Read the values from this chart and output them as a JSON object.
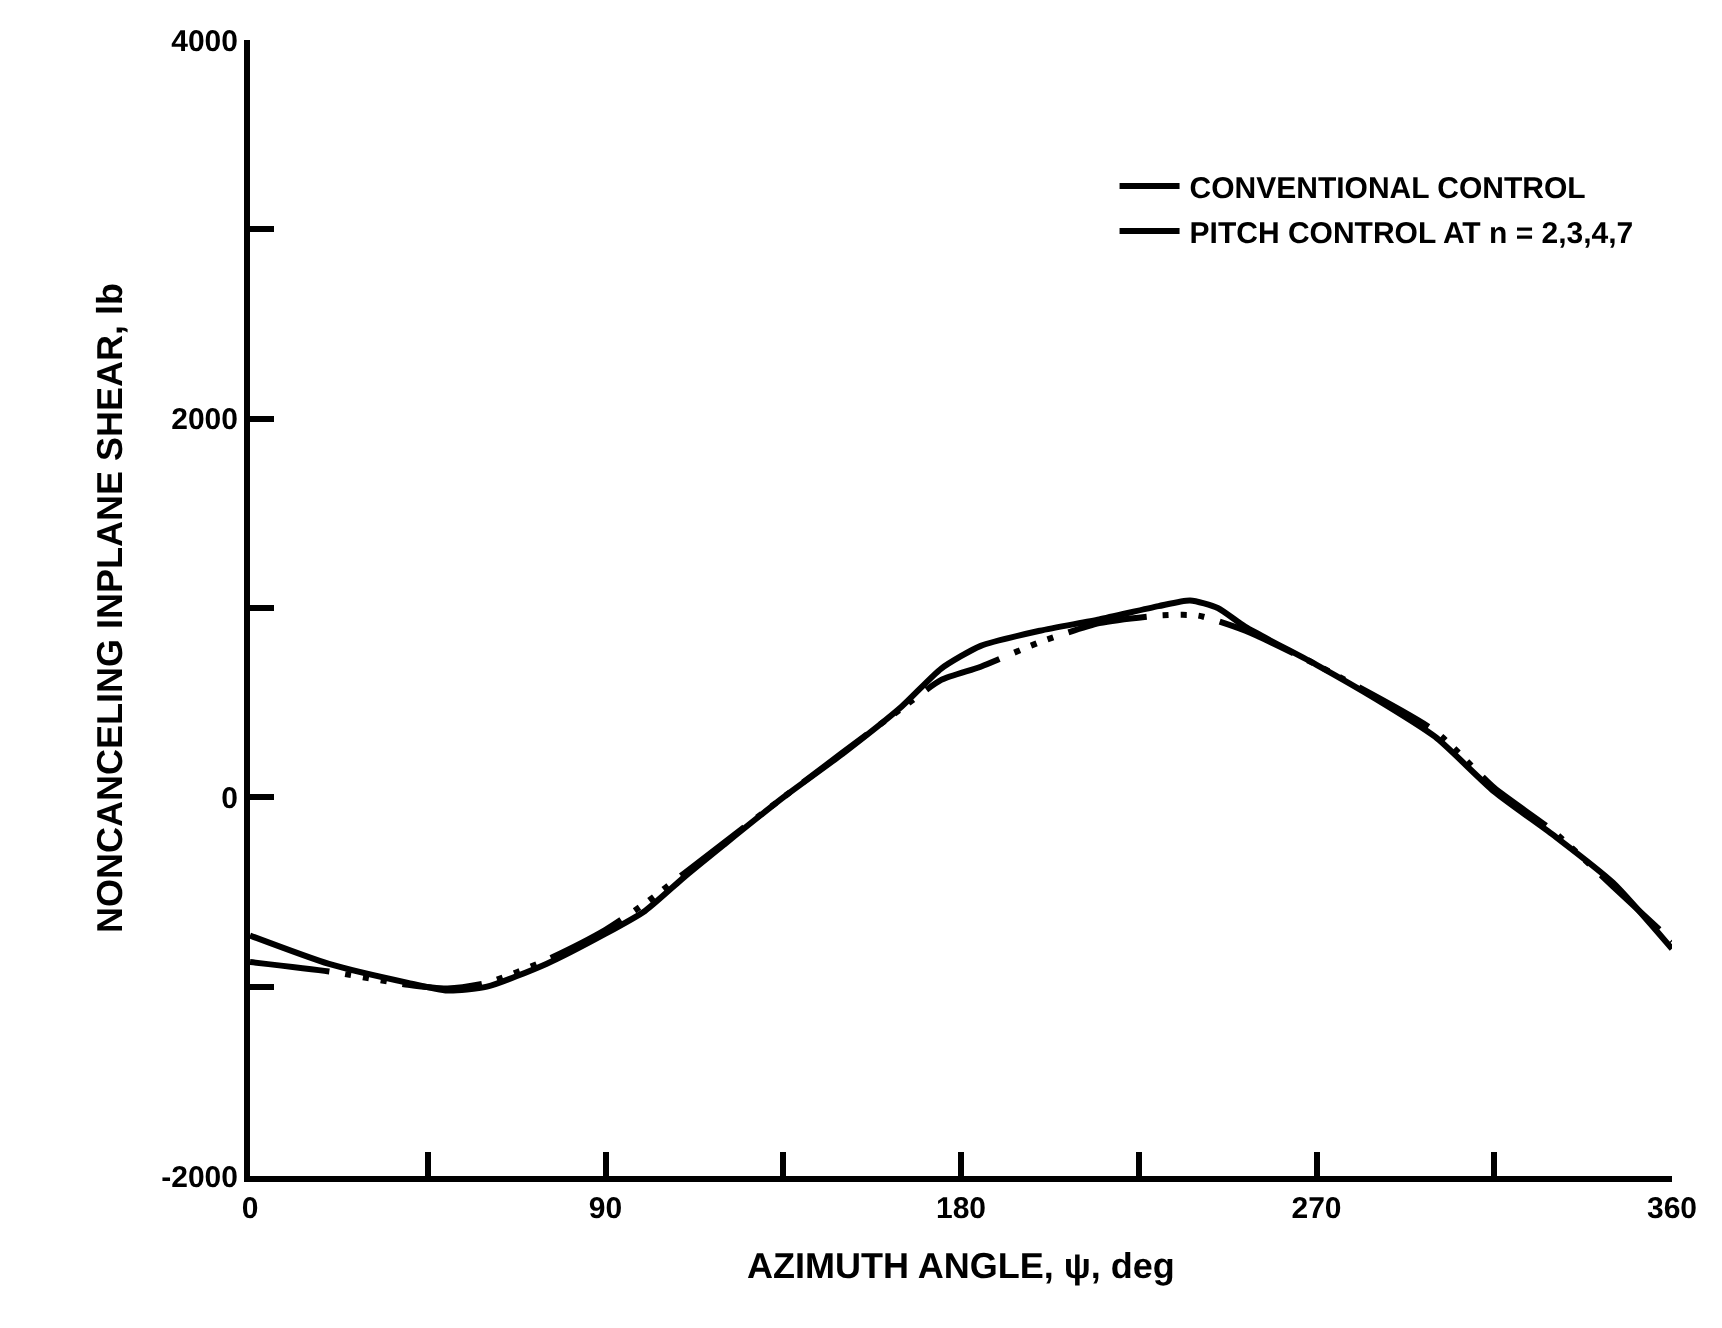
{
  "chart_data": {
    "type": "line",
    "xlabel": "AZIMUTH ANGLE, ψ, deg",
    "ylabel": "NONCANCELING INPLANE SHEAR, lb",
    "xlim": [
      0,
      360
    ],
    "xticks": [
      0,
      {
        "value": 45,
        "label": null
      },
      90,
      {
        "value": 135,
        "label": null
      },
      180,
      {
        "value": 225,
        "label": null
      },
      270,
      {
        "value": 315,
        "label": null
      },
      360
    ],
    "ylim": [
      -2000,
      4000
    ],
    "yticks": [
      -2000,
      {
        "value": -1000,
        "label": null
      },
      0,
      {
        "value": 1000,
        "label": null
      },
      2000,
      {
        "value": 3000,
        "label": null
      },
      4000
    ],
    "legend": "top right",
    "marker": "none",
    "series": [
      {
        "name": "CONVENTIONAL CONTROL",
        "color": "#000000",
        "line_style": "solid",
        "x": [
          0,
          20,
          40,
          50,
          60,
          75,
          90,
          100,
          110,
          120,
          135,
          150,
          165,
          175,
          185,
          200,
          215,
          230,
          238,
          245,
          252,
          270,
          285,
          300,
          315,
          330,
          345,
          360
        ],
        "values": [
          -730,
          -880,
          -980,
          -1020,
          -1000,
          -880,
          -720,
          -600,
          -420,
          -250,
          0,
          230,
          480,
          680,
          800,
          880,
          940,
          1010,
          1040,
          1000,
          900,
          700,
          520,
          320,
          30,
          -200,
          -450,
          -800
        ]
      },
      {
        "name": "PITCH CONTROL AT n = 2,3,4,7",
        "color": "#000000",
        "line_style": "dashed",
        "x": [
          0,
          20,
          40,
          50,
          60,
          75,
          90,
          100,
          110,
          135,
          165,
          175,
          185,
          200,
          215,
          230,
          240,
          252,
          270,
          300,
          315,
          330,
          345,
          360
        ],
        "values": [
          -870,
          -920,
          -990,
          -1010,
          -980,
          -860,
          -700,
          -560,
          -400,
          0,
          470,
          620,
          690,
          820,
          920,
          960,
          960,
          880,
          700,
          350,
          50,
          -180,
          -470,
          -760
        ]
      }
    ]
  }
}
